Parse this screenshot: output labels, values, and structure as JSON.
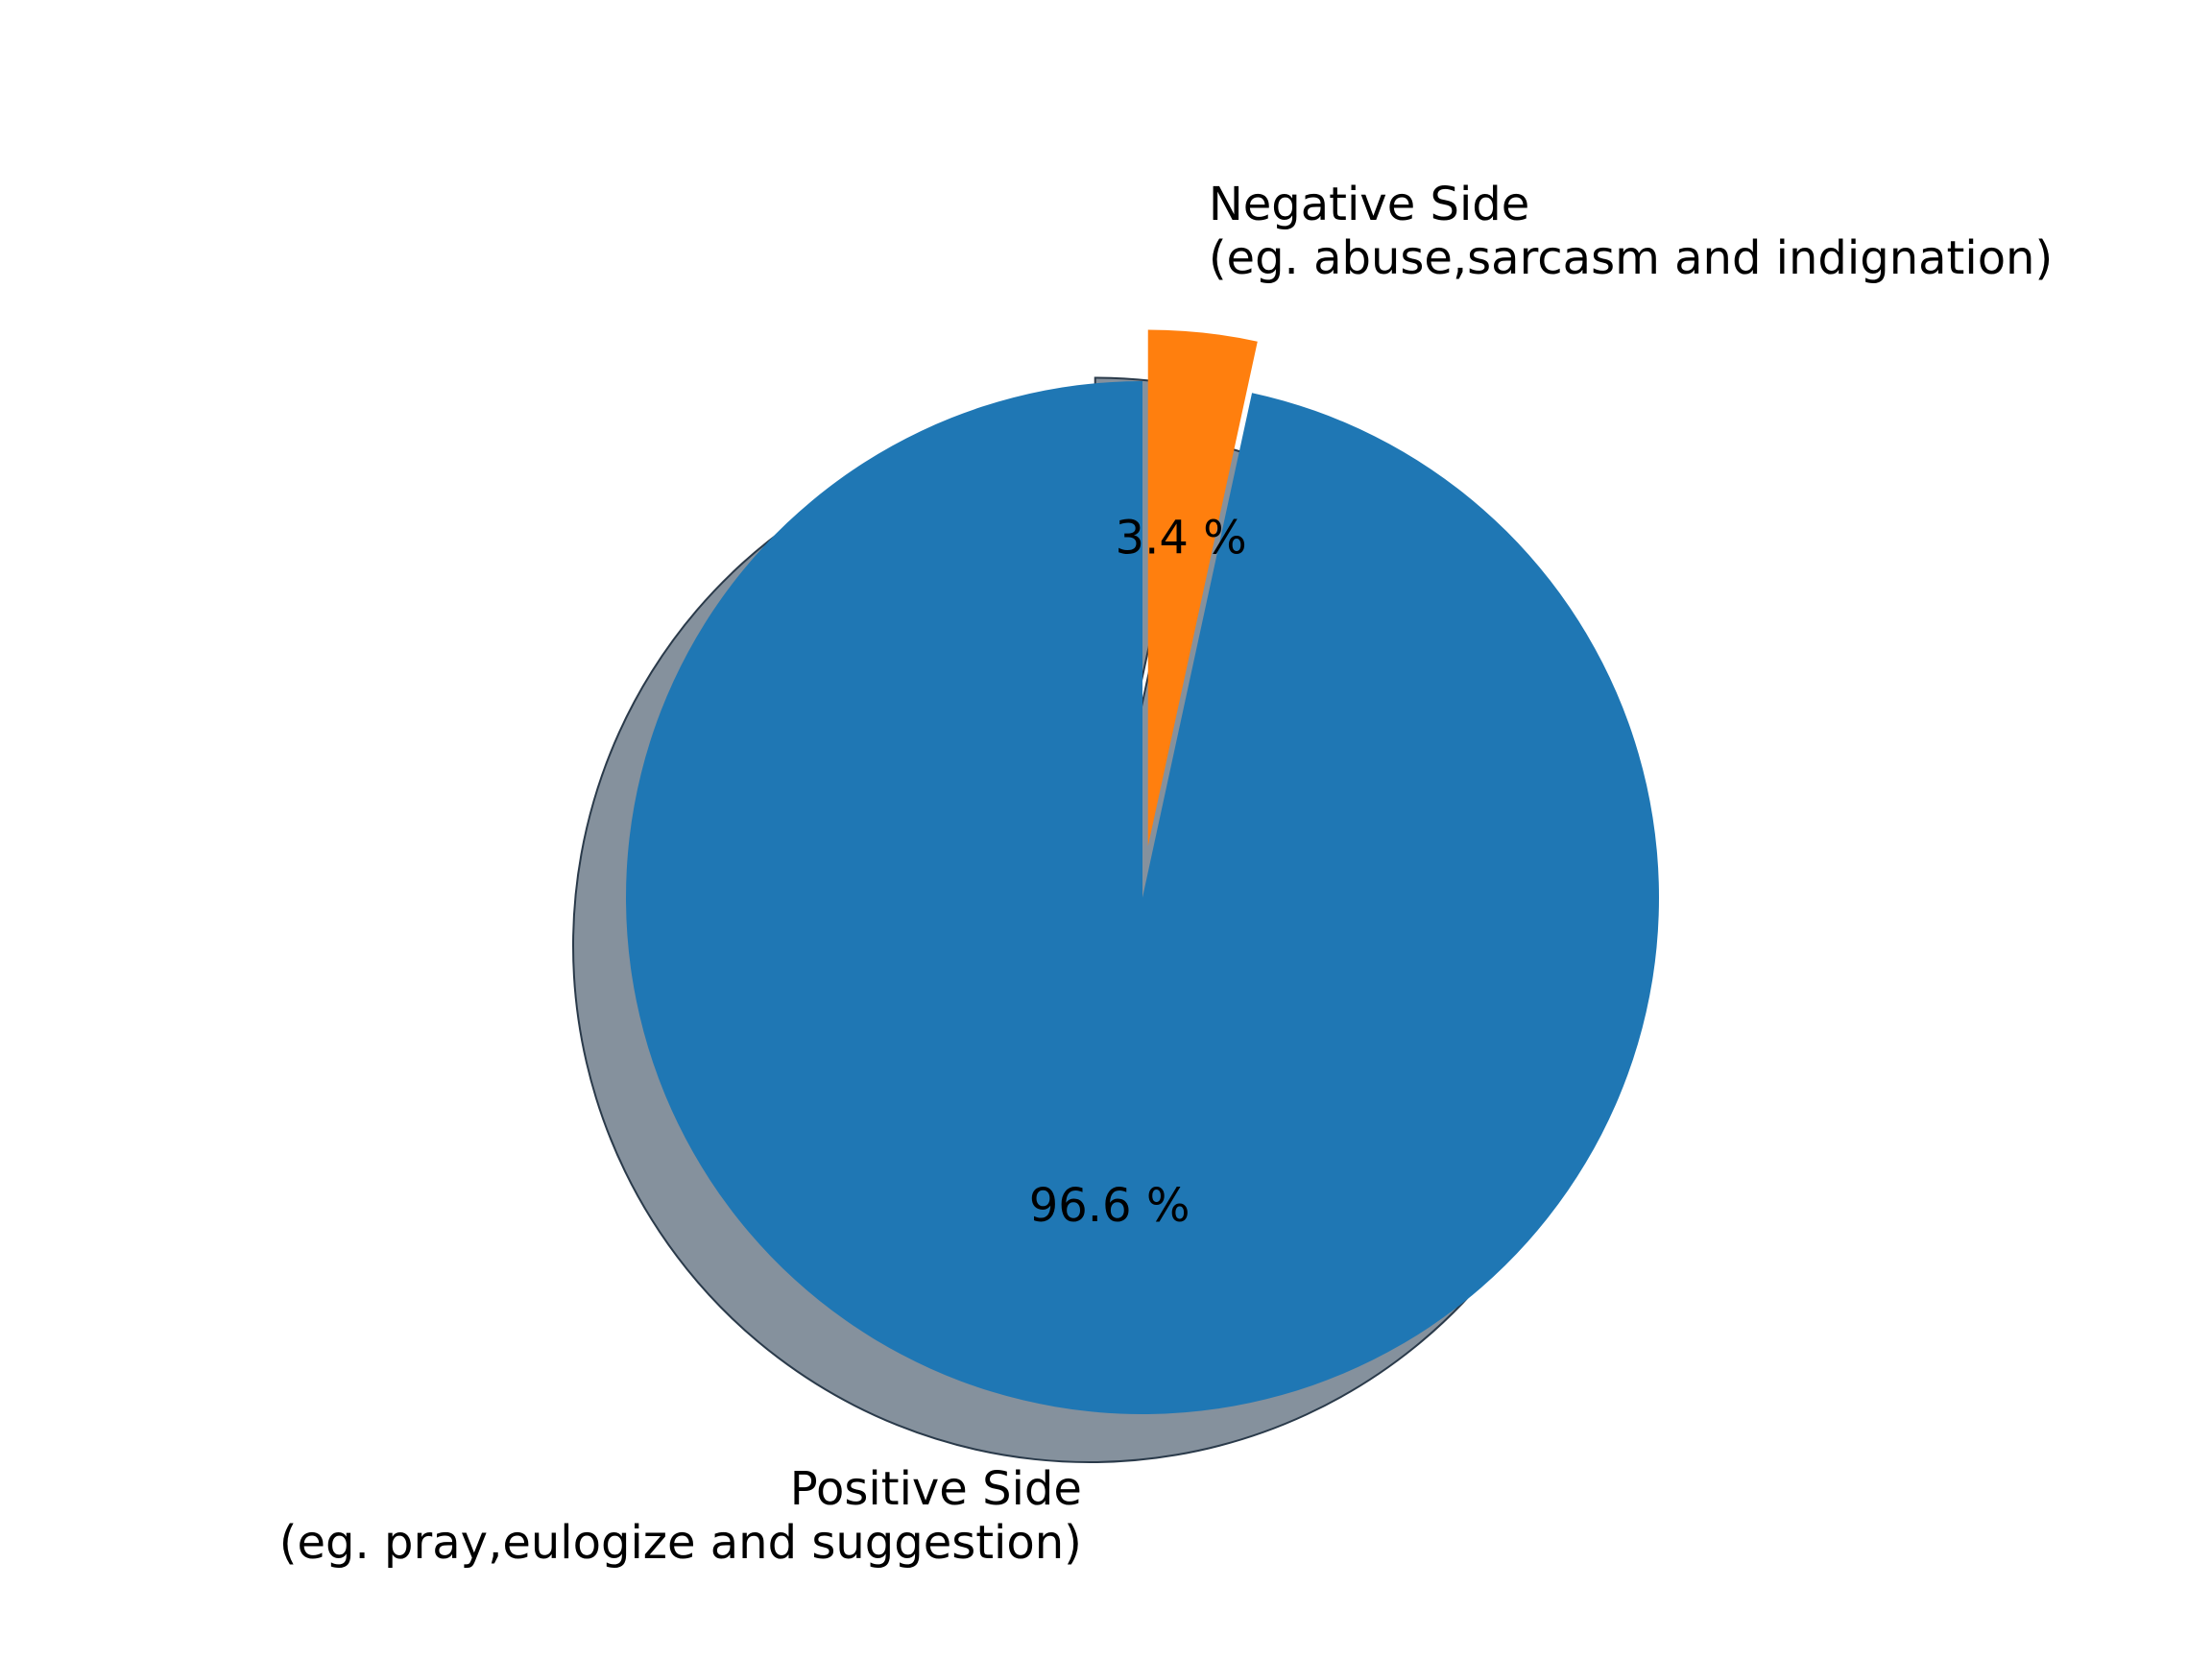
{
  "chart_data": {
    "type": "pie",
    "categories": [
      "Negative Side\n(eg. abuse,sarcasm and indignation)",
      "Positive Side\n(eg. pray,eulogize and suggestion)"
    ],
    "values": [
      3.4,
      96.6
    ],
    "percent_labels": [
      "3.4 %",
      "96.6 %"
    ],
    "colors": [
      "#ff7f0e",
      "#1f77b4"
    ],
    "exploded": [
      true,
      false
    ],
    "shadow": true,
    "start_angle_deg": 90,
    "direction": "clockwise",
    "legend": "none",
    "grid": false
  }
}
